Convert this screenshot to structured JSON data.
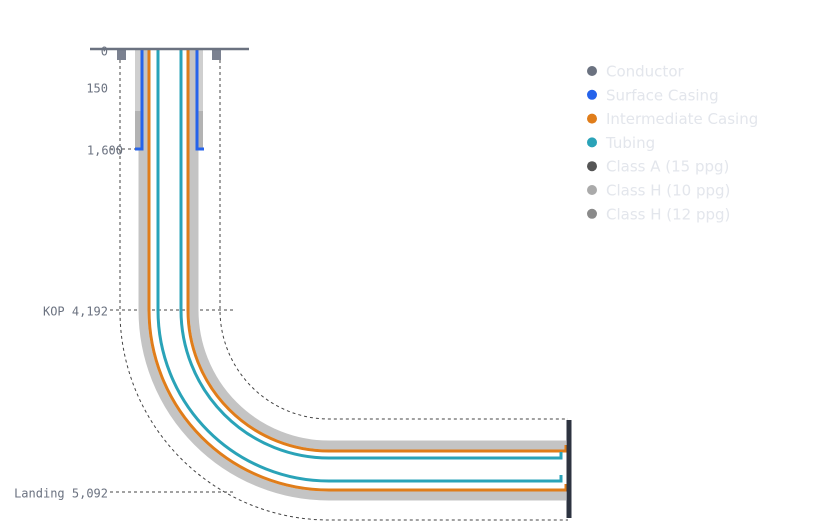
{
  "depth_labels": [
    "0",
    "150",
    "1,600",
    "KOP 4,192",
    "Landing 5,092"
  ],
  "legend": [
    {
      "name": "Conductor",
      "color": "#6b7280"
    },
    {
      "name": "Surface Casing",
      "color": "#2563eb"
    },
    {
      "name": "Intermediate Casing",
      "color": "#e07d1a"
    },
    {
      "name": "Tubing",
      "color": "#2aa3b8"
    },
    {
      "name": "Class A (15 ppg)",
      "color": "#555555"
    },
    {
      "name": "Class H (10 ppg)",
      "color": "#aaaaaa"
    },
    {
      "name": "Class H (12 ppg)",
      "color": "#8a8a8a"
    }
  ]
}
